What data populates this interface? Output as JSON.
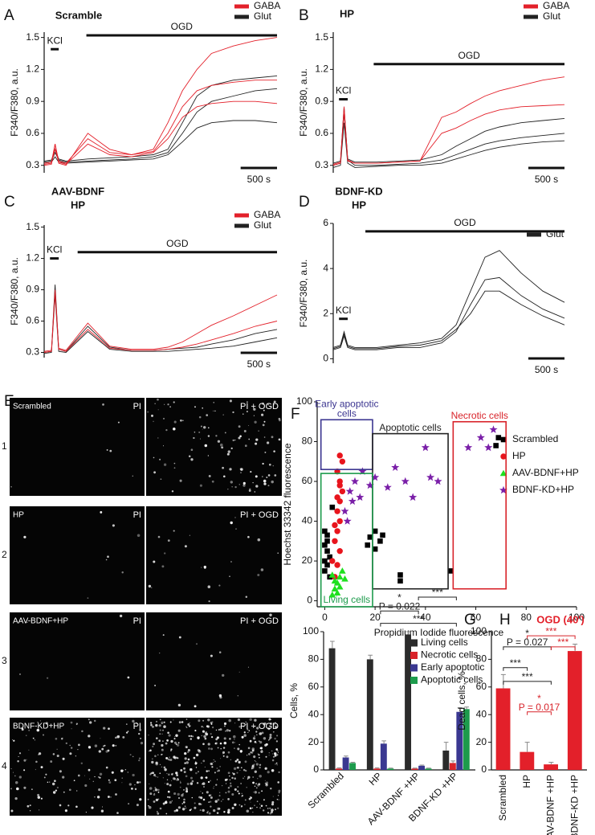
{
  "chart_data": [
    {
      "panel": "A",
      "type": "line",
      "title": [
        "Scramble"
      ],
      "ylabel": "F340/F380, a.u.",
      "x": [
        0,
        100,
        150,
        200,
        300,
        600,
        900,
        1200,
        1500,
        1700,
        1900,
        2100,
        2300,
        2600,
        2900,
        3200
      ],
      "xlim": [
        0,
        3200
      ],
      "ylim": [
        0.23,
        1.55
      ],
      "yticks": [
        0.3,
        0.6,
        0.9,
        1.2,
        1.5
      ],
      "series": [
        {
          "name": "GABA",
          "color": "#e3202a",
          "values": [
            [
              0.3,
              0.31,
              0.5,
              0.32,
              0.3,
              0.6,
              0.45,
              0.4,
              0.45,
              0.7,
              1.0,
              1.2,
              1.35,
              1.42,
              1.47,
              1.5
            ],
            [
              0.31,
              0.32,
              0.45,
              0.33,
              0.31,
              0.5,
              0.4,
              0.38,
              0.42,
              0.55,
              0.75,
              0.85,
              0.88,
              0.9,
              0.9,
              0.88
            ],
            [
              0.32,
              0.33,
              0.5,
              0.34,
              0.32,
              0.55,
              0.42,
              0.4,
              0.43,
              0.6,
              0.85,
              1.0,
              1.05,
              1.08,
              1.1,
              1.1
            ]
          ]
        },
        {
          "name": "Glut",
          "color": "#222222",
          "values": [
            [
              0.33,
              0.34,
              0.42,
              0.35,
              0.33,
              0.34,
              0.35,
              0.36,
              0.38,
              0.42,
              0.6,
              0.8,
              0.9,
              0.95,
              1.0,
              1.02
            ],
            [
              0.32,
              0.33,
              0.38,
              0.33,
              0.32,
              0.33,
              0.34,
              0.35,
              0.36,
              0.4,
              0.52,
              0.65,
              0.7,
              0.72,
              0.72,
              0.7
            ],
            [
              0.34,
              0.35,
              0.45,
              0.36,
              0.34,
              0.36,
              0.37,
              0.38,
              0.4,
              0.45,
              0.7,
              0.95,
              1.05,
              1.1,
              1.12,
              1.14
            ]
          ]
        }
      ],
      "annotations": [
        {
          "label": "OGD",
          "start": 580,
          "end": 3200,
          "y": 1.52
        },
        {
          "label": "KCl",
          "start": 90,
          "end": 200,
          "y": 1.39
        }
      ],
      "scale_bar": {
        "value": 500,
        "label": "500 s"
      }
    },
    {
      "panel": "B",
      "type": "line",
      "title": [
        "HP"
      ],
      "ylabel": "F340/F380, a.u.",
      "x": [
        0,
        100,
        150,
        200,
        300,
        600,
        900,
        1200,
        1500,
        1700,
        1900,
        2100,
        2300,
        2600,
        2900,
        3200
      ],
      "xlim": [
        0,
        3200
      ],
      "ylim": [
        0.23,
        1.55
      ],
      "yticks": [
        0.3,
        0.6,
        0.9,
        1.2,
        1.5
      ],
      "series": [
        {
          "name": "GABA",
          "color": "#e3202a",
          "values": [
            [
              0.3,
              0.32,
              0.85,
              0.35,
              0.32,
              0.32,
              0.33,
              0.34,
              0.75,
              0.8,
              0.88,
              0.95,
              1.0,
              1.05,
              1.1,
              1.13
            ],
            [
              0.31,
              0.33,
              0.8,
              0.34,
              0.32,
              0.32,
              0.33,
              0.34,
              0.6,
              0.65,
              0.72,
              0.78,
              0.82,
              0.85,
              0.86,
              0.87
            ]
          ]
        },
        {
          "name": "Glut",
          "color": "#222222",
          "values": [
            [
              0.3,
              0.32,
              0.8,
              0.35,
              0.3,
              0.3,
              0.31,
              0.32,
              0.35,
              0.4,
              0.45,
              0.5,
              0.53,
              0.56,
              0.58,
              0.6
            ],
            [
              0.28,
              0.3,
              0.7,
              0.32,
              0.28,
              0.29,
              0.3,
              0.3,
              0.32,
              0.36,
              0.4,
              0.44,
              0.47,
              0.5,
              0.52,
              0.53
            ],
            [
              0.32,
              0.34,
              0.85,
              0.36,
              0.33,
              0.33,
              0.34,
              0.35,
              0.4,
              0.48,
              0.55,
              0.62,
              0.66,
              0.7,
              0.72,
              0.74
            ]
          ]
        }
      ],
      "annotations": [
        {
          "label": "OGD",
          "start": 560,
          "end": 3200,
          "y": 1.25
        },
        {
          "label": "KCl",
          "start": 80,
          "end": 200,
          "y": 0.92
        }
      ],
      "scale_bar": {
        "value": 500,
        "label": "500 s"
      }
    },
    {
      "panel": "C",
      "type": "line",
      "title": [
        "AAV-BDNF",
        "HP"
      ],
      "ylabel": "F340/F380, a.u.",
      "x": [
        0,
        100,
        150,
        200,
        300,
        600,
        900,
        1200,
        1500,
        1700,
        1900,
        2100,
        2300,
        2600,
        2900,
        3200
      ],
      "xlim": [
        0,
        3200
      ],
      "ylim": [
        0.25,
        1.52
      ],
      "yticks": [
        0.3,
        0.6,
        0.9,
        1.2,
        1.5
      ],
      "series": [
        {
          "name": "GABA",
          "color": "#e3202a",
          "values": [
            [
              0.31,
              0.32,
              0.9,
              0.34,
              0.32,
              0.58,
              0.36,
              0.33,
              0.33,
              0.35,
              0.4,
              0.48,
              0.56,
              0.65,
              0.75,
              0.85
            ],
            [
              0.3,
              0.31,
              0.88,
              0.33,
              0.31,
              0.52,
              0.34,
              0.32,
              0.32,
              0.33,
              0.35,
              0.38,
              0.42,
              0.48,
              0.55,
              0.6
            ]
          ]
        },
        {
          "name": "Glut",
          "color": "#222222",
          "values": [
            [
              0.3,
              0.31,
              0.95,
              0.33,
              0.31,
              0.55,
              0.35,
              0.32,
              0.32,
              0.33,
              0.34,
              0.35,
              0.38,
              0.42,
              0.48,
              0.52
            ],
            [
              0.29,
              0.3,
              0.85,
              0.31,
              0.3,
              0.5,
              0.33,
              0.31,
              0.31,
              0.31,
              0.32,
              0.33,
              0.34,
              0.36,
              0.4,
              0.44
            ]
          ]
        }
      ],
      "annotations": [
        {
          "label": "OGD",
          "start": 460,
          "end": 3200,
          "y": 1.26
        },
        {
          "label": "KCl",
          "start": 80,
          "end": 200,
          "y": 1.2
        }
      ],
      "scale_bar": {
        "value": 500,
        "label": "500 s"
      }
    },
    {
      "panel": "D",
      "type": "line",
      "title": [
        "BDNF-KD",
        "HP"
      ],
      "ylabel": "F340/F380, a.u.",
      "x": [
        0,
        100,
        150,
        200,
        300,
        600,
        900,
        1200,
        1500,
        1700,
        1900,
        2100,
        2300,
        2600,
        2900,
        3200
      ],
      "xlim": [
        0,
        3200
      ],
      "ylim": [
        -0.2,
        6
      ],
      "yticks": [
        0,
        2,
        4,
        6
      ],
      "series": [
        {
          "name": "Glut",
          "color": "#222222",
          "values": [
            [
              0.5,
              0.6,
              1.2,
              0.6,
              0.5,
              0.5,
              0.6,
              0.7,
              0.9,
              1.5,
              3.0,
              4.5,
              4.8,
              3.8,
              3.0,
              2.5
            ],
            [
              0.4,
              0.5,
              1.0,
              0.5,
              0.4,
              0.4,
              0.5,
              0.5,
              0.7,
              1.2,
              2.4,
              3.5,
              3.6,
              2.8,
              2.2,
              1.8
            ],
            [
              0.45,
              0.55,
              1.1,
              0.55,
              0.45,
              0.45,
              0.55,
              0.6,
              0.8,
              1.3,
              2.0,
              3.0,
              3.0,
              2.4,
              1.9,
              1.5
            ]
          ]
        }
      ],
      "annotations": [
        {
          "label": "OGD",
          "start": 445,
          "end": 3200,
          "y": 5.65
        },
        {
          "label": "KCl",
          "start": 80,
          "end": 200,
          "y": 1.77
        }
      ],
      "scale_bar": {
        "value": 500,
        "label": "500 s"
      }
    },
    {
      "panel": "F",
      "type": "scatter",
      "xlabel": "Propidium Iodide  fluorescence",
      "ylabel": "Hoechst 33342  fluorescence",
      "xlim": [
        -3,
        100
      ],
      "ylim": [
        -3,
        100
      ],
      "xticks": [
        0,
        20,
        40,
        60,
        80,
        100
      ],
      "yticks": [
        0,
        20,
        40,
        60,
        80,
        100
      ],
      "series": [
        {
          "name": "Scrambled",
          "color": "#000000",
          "marker": "square",
          "x": [
            0,
            0,
            1,
            1,
            0,
            1,
            2,
            0,
            2,
            1,
            18,
            20,
            22,
            17,
            23,
            20,
            30,
            30,
            50,
            68,
            69,
            3
          ],
          "values": [
            15,
            20,
            25,
            30,
            35,
            18,
            22,
            28,
            12,
            33,
            32,
            35,
            30,
            28,
            33,
            26,
            10,
            13,
            15,
            78,
            82,
            47
          ]
        },
        {
          "name": "HP",
          "color": "#e8141c",
          "marker": "circle",
          "x": [
            4,
            5,
            6,
            4,
            5,
            6,
            5,
            6,
            7,
            6,
            5,
            7,
            6,
            4,
            5,
            6,
            3
          ],
          "values": [
            12,
            18,
            25,
            30,
            35,
            40,
            45,
            50,
            55,
            60,
            65,
            70,
            73,
            38,
            52,
            58,
            20
          ]
        },
        {
          "name": "AAV-BDNF+HP",
          "color": "#1fe01f",
          "marker": "triangle",
          "x": [
            3,
            4,
            5,
            6,
            7,
            4,
            5,
            6,
            8,
            3
          ],
          "values": [
            3,
            6,
            9,
            12,
            15,
            10,
            4,
            7,
            11,
            13
          ]
        },
        {
          "name": "BDNF-KD+HP",
          "color": "#7a1fa8",
          "marker": "star",
          "x": [
            8,
            10,
            12,
            15,
            18,
            20,
            25,
            28,
            32,
            35,
            40,
            42,
            45,
            9,
            11,
            14,
            57,
            62,
            65,
            67
          ],
          "values": [
            45,
            55,
            60,
            65,
            58,
            62,
            57,
            67,
            60,
            52,
            77,
            62,
            60,
            40,
            50,
            52,
            77,
            82,
            77,
            86
          ]
        }
      ],
      "gates": [
        {
          "label": [
            "Early apoptotic",
            "cells"
          ],
          "color": "#3b3590",
          "x": [
            -1.5,
            19
          ],
          "y": [
            66,
            91
          ],
          "label_side": "top"
        },
        {
          "label": [
            "Apoptotic cells"
          ],
          "color": "#222222",
          "x": [
            19,
            49
          ],
          "y": [
            6,
            84
          ],
          "label_side": "top"
        },
        {
          "label": [
            "Necrotic cells"
          ],
          "color": "#d8232a",
          "x": [
            51,
            72
          ],
          "y": [
            6,
            90
          ],
          "label_side": "top"
        },
        {
          "label": [
            "Living cells"
          ],
          "color": "#1d9b4c",
          "x": [
            -1.5,
            19
          ],
          "y": [
            -3,
            64
          ],
          "label_side": "bottom"
        }
      ]
    },
    {
      "panel": "G",
      "type": "bar",
      "ylabel": "Cells, %",
      "categories": [
        "Scrambled",
        "HP",
        "AAV-BDNF +HP",
        "BDNF-KD +HP"
      ],
      "ylim": [
        0,
        100
      ],
      "yticks": [
        0,
        20,
        40,
        60,
        80,
        100
      ],
      "series": [
        {
          "name": "Living cells",
          "color": "#2b2b2b",
          "values": [
            88,
            80,
            98,
            14
          ],
          "errors": [
            5,
            3,
            2,
            6
          ]
        },
        {
          "name": "Necrotic cells",
          "color": "#d8232a",
          "values": [
            1,
            1,
            1,
            5
          ],
          "errors": [
            0.5,
            0.5,
            0.3,
            1.5
          ]
        },
        {
          "name": "Early apoptotic",
          "color": "#3a3891",
          "values": [
            9,
            19,
            3,
            42
          ],
          "errors": [
            1,
            2,
            0.5,
            3
          ]
        },
        {
          "name": "Apoptotic cells",
          "color": "#1d9b4c",
          "values": [
            5,
            1,
            1,
            44
          ],
          "errors": [
            0.5,
            0.3,
            0.3,
            1.5
          ]
        }
      ],
      "annotations": [
        {
          "from": 1,
          "to": 2,
          "y": 115,
          "labels": [
            "*",
            "P = 0.022"
          ],
          "color": "#222222"
        },
        {
          "from": 2,
          "to": 3,
          "y": 125,
          "labels": [
            "***"
          ],
          "color": "#222222"
        },
        {
          "from": 1,
          "to": 3,
          "y": 106,
          "labels": [
            "***"
          ],
          "color": "#222222"
        }
      ]
    },
    {
      "panel": "H",
      "type": "bar",
      "title": [
        "OGD (40')"
      ],
      "ylabel": "Dead cells, %",
      "categories": [
        "Scrambled",
        "HP",
        "AAV-BDNF +HP",
        "BDNF-KD +HP"
      ],
      "ylim": [
        0,
        100
      ],
      "yticks": [
        0,
        20,
        40,
        60,
        80,
        100
      ],
      "color": "#e3202a",
      "values": [
        59,
        13,
        4,
        86
      ],
      "errors": [
        10,
        7,
        1.5,
        5
      ],
      "annotations": [
        {
          "from": 1,
          "to": 3,
          "y": 97,
          "labels": [
            "***"
          ],
          "color": "#d8232a"
        },
        {
          "from": 0,
          "to": 2,
          "y": 89,
          "labels": [
            "*",
            "P = 0.027"
          ],
          "color": "#222222"
        },
        {
          "from": 2,
          "to": 3,
          "y": 89,
          "labels": [
            "***"
          ],
          "color": "#d8232a"
        },
        {
          "from": 0,
          "to": 1,
          "y": 74,
          "labels": [
            "***"
          ],
          "color": "#222222"
        },
        {
          "from": 0,
          "to": 2,
          "y": 64,
          "labels": [
            "***"
          ],
          "color": "#222222"
        },
        {
          "from": 1,
          "to": 2,
          "y": 42,
          "labels": [
            "*",
            "P = 0.017"
          ],
          "color": "#d8232a"
        }
      ]
    }
  ],
  "micrographs": {
    "panel": "E",
    "columns": [
      "PI",
      "PI + OGD"
    ],
    "rows": [
      {
        "number": "1",
        "label": "Scrambled"
      },
      {
        "number": "2",
        "label": "HP"
      },
      {
        "number": "3",
        "label": "AAV-BDNF+HP"
      },
      {
        "number": "4",
        "label": "BDNF-KD+HP"
      }
    ]
  }
}
